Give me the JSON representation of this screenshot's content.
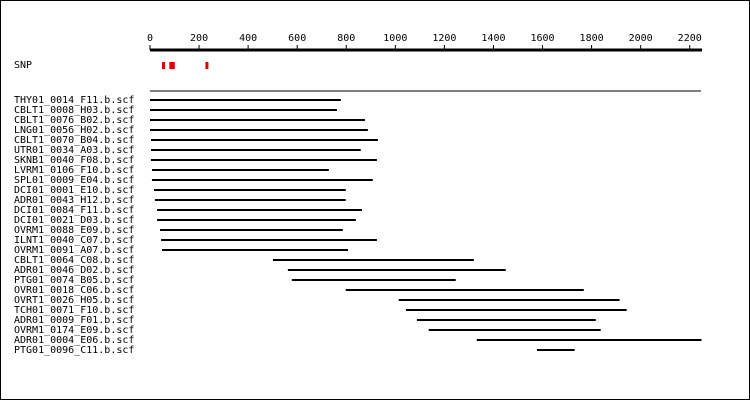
{
  "chart_data": {
    "type": "alignment",
    "xlim": [
      0,
      2250
    ],
    "xticks": [
      0,
      200,
      400,
      600,
      800,
      1000,
      1200,
      1400,
      1600,
      1800,
      2000,
      2200
    ],
    "snp_label": "SNP",
    "snp_color": "#e00000",
    "snps": [
      55,
      85,
      95,
      232
    ],
    "read_color": "#000000",
    "categories": [
      "THY01_0014_F11.b.scf",
      "CBLT1_0008_H03.b.scf",
      "CBLT1_0076_B02.b.scf",
      "LNG01_0056_H02.b.scf",
      "CBLT1_0070_B04.b.scf",
      "UTR01_0034_A03.b.scf",
      "SKNB1_0040_F08.b.scf",
      "LVRM1_0106_F10.b.scf",
      "SPL01_0009_E04.b.scf",
      "DCI01_0001_E10.b.scf",
      "ADR01_0043_H12.b.scf",
      "DCI01_0084_F11.b.scf",
      "DCI01_0021_D03.b.scf",
      "OVRM1_0088_E09.b.scf",
      "ILNT1_0040_C07.b.scf",
      "OVRM1_0091_A07.b.scf",
      "CBLT1_0064_C08.b.scf",
      "ADR01_0046_D02.b.scf",
      "PTG01_0074_B05.b.scf",
      "OVR01_0018_C06.b.scf",
      "OVRT1_0026_H05.b.scf",
      "TCH01_0071_F10.b.scf",
      "ADR01_0009_F01.b.scf",
      "OVRM1_0174_E09.b.scf",
      "ADR01_0004_E06.b.scf",
      "PTG01_0096_C11.b.scf"
    ],
    "starts": [
      0,
      0,
      0,
      0,
      4,
      4,
      4,
      8,
      8,
      16,
      20,
      29,
      29,
      41,
      45,
      49,
      501,
      562,
      578,
      798,
      1014,
      1043,
      1088,
      1136,
      1332,
      1577
    ],
    "ends": [
      778,
      762,
      876,
      888,
      929,
      859,
      925,
      729,
      908,
      798,
      798,
      864,
      839,
      786,
      925,
      807,
      1320,
      1450,
      1246,
      1768,
      1914,
      1943,
      1817,
      1837,
      2248,
      1731
    ]
  }
}
